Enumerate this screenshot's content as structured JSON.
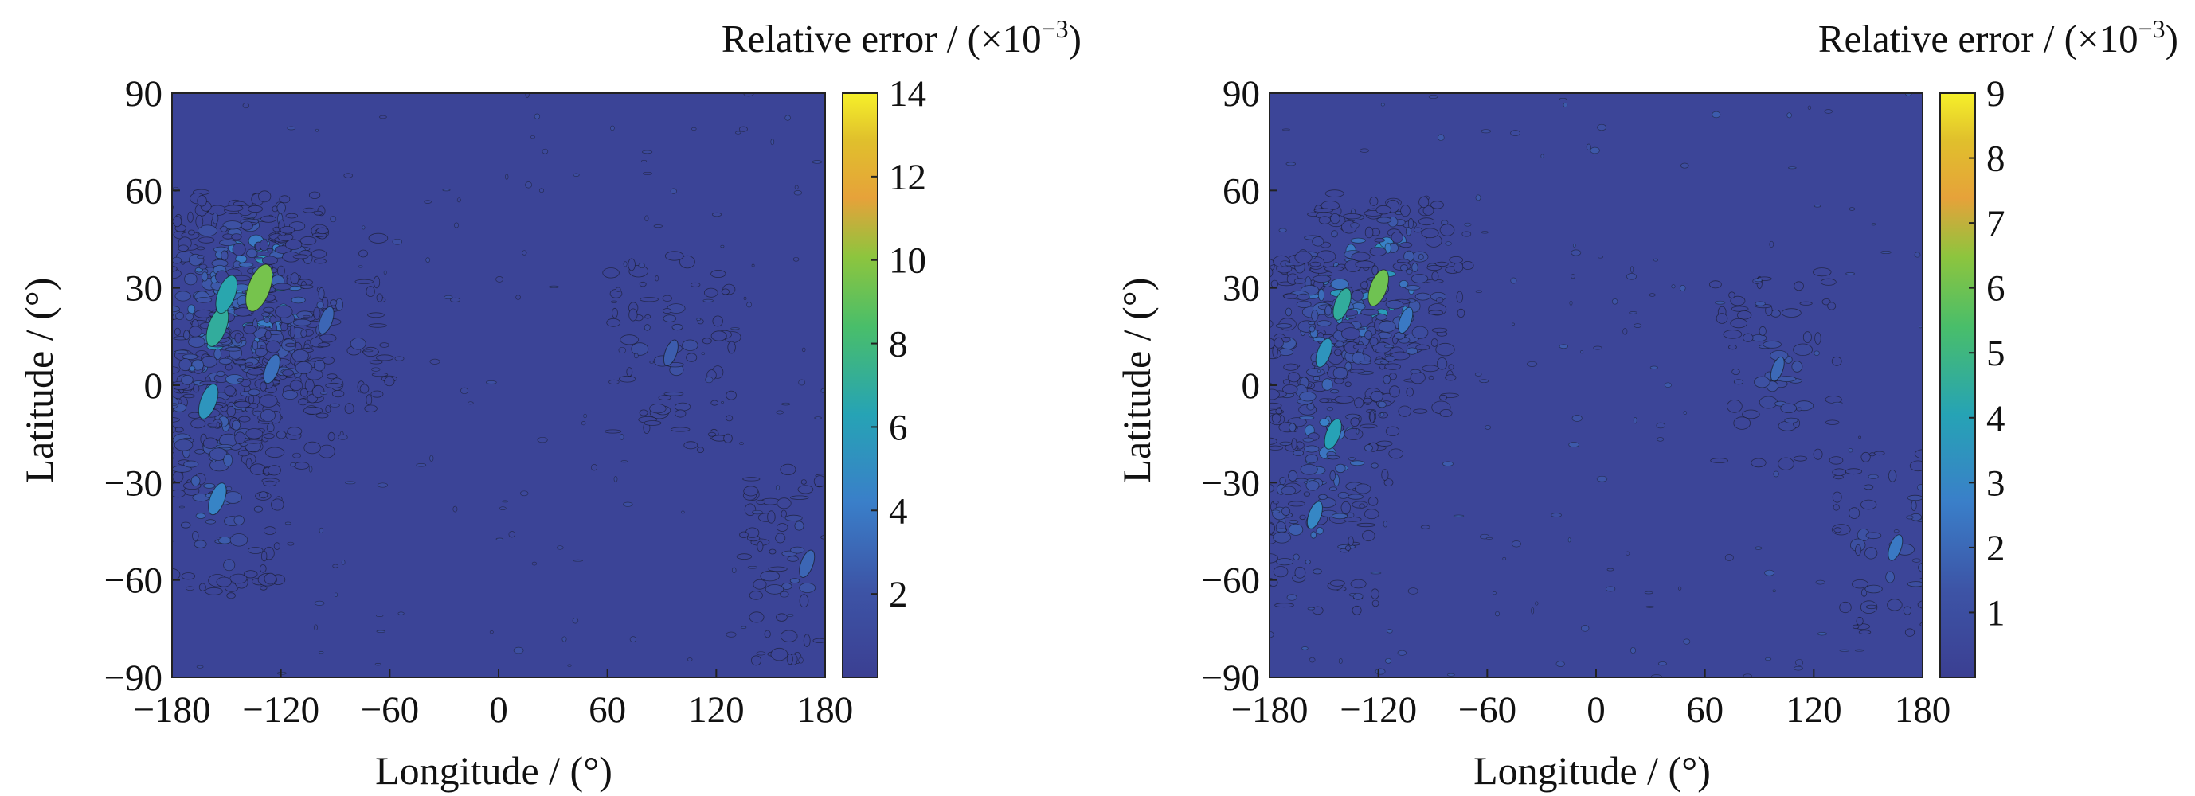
{
  "chart_data": [
    {
      "type": "heatmap",
      "title": "",
      "xlabel": "Longitude / (°)",
      "ylabel": "Latitude / (°)",
      "xlim": [
        -180,
        180
      ],
      "ylim": [
        -90,
        90
      ],
      "x_ticks": [
        "−180",
        "−120",
        "−60",
        "0",
        "60",
        "120",
        "180"
      ],
      "y_ticks": [
        "90",
        "60",
        "30",
        "0",
        "−30",
        "−60",
        "−90"
      ],
      "colorbar": {
        "title_main": "Relative error / (×10",
        "title_sup": "−3",
        "title_end": ")",
        "range": [
          0,
          14
        ],
        "ticks": [
          "14",
          "12",
          "10",
          "8",
          "6",
          "4",
          "2"
        ]
      },
      "background_value": 0.5,
      "hotspots": [
        {
          "lon": -132,
          "lat": 30,
          "value": 9.5
        },
        {
          "lon": -155,
          "lat": 18,
          "value": 7.0
        },
        {
          "lon": -150,
          "lat": 28,
          "value": 6.5
        },
        {
          "lon": -160,
          "lat": -5,
          "value": 5.5
        },
        {
          "lon": -155,
          "lat": -35,
          "value": 4.5
        },
        {
          "lon": -125,
          "lat": 5,
          "value": 3.5
        },
        {
          "lon": -95,
          "lat": 20,
          "value": 3.0
        },
        {
          "lon": 95,
          "lat": 10,
          "value": 2.5
        },
        {
          "lon": 170,
          "lat": -55,
          "value": 3.0
        }
      ]
    },
    {
      "type": "heatmap",
      "title": "",
      "xlabel": "Longitude / (°)",
      "ylabel": "Latitude / (°)",
      "xlim": [
        -180,
        180
      ],
      "ylim": [
        -90,
        90
      ],
      "x_ticks": [
        "−180",
        "−120",
        "−60",
        "0",
        "60",
        "120",
        "180"
      ],
      "y_ticks": [
        "90",
        "60",
        "30",
        "0",
        "−30",
        "−60",
        "−90"
      ],
      "colorbar": {
        "title_main": "Relative error / (×10",
        "title_sup": "−3",
        "title_end": ")",
        "range": [
          0,
          9
        ],
        "ticks": [
          "9",
          "8",
          "7",
          "6",
          "5",
          "4",
          "3",
          "2",
          "1"
        ]
      },
      "background_value": 0.4,
      "hotspots": [
        {
          "lon": -120,
          "lat": 30,
          "value": 6.0
        },
        {
          "lon": -140,
          "lat": 25,
          "value": 4.5
        },
        {
          "lon": -150,
          "lat": 10,
          "value": 3.5
        },
        {
          "lon": -145,
          "lat": -15,
          "value": 4.0
        },
        {
          "lon": -155,
          "lat": -40,
          "value": 3.0
        },
        {
          "lon": -105,
          "lat": 20,
          "value": 2.5
        },
        {
          "lon": 100,
          "lat": 5,
          "value": 2.0
        },
        {
          "lon": 165,
          "lat": -50,
          "value": 2.5
        }
      ]
    }
  ],
  "colors": {
    "viridis_low": "#3b3f92",
    "viridis_mid": "#26a3b5",
    "viridis_green": "#5cc84a",
    "viridis_orange": "#f0a03a",
    "viridis_high": "#f6f02a"
  }
}
